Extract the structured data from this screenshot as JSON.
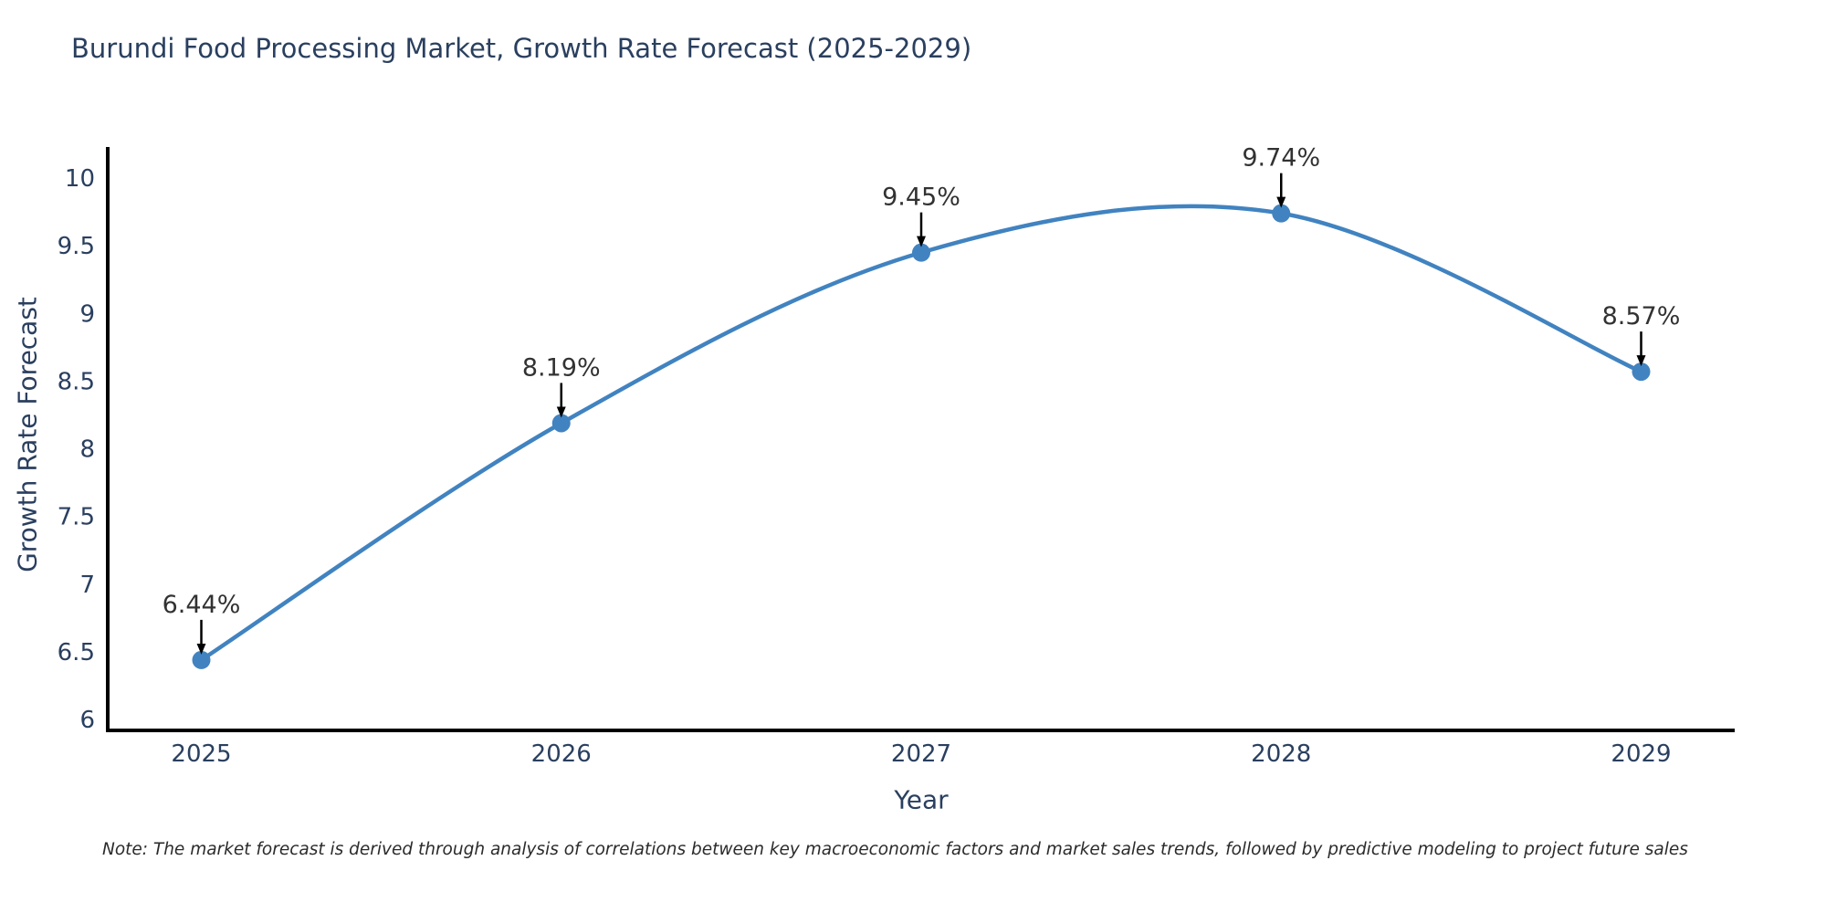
{
  "title": "Burundi Food Processing Market, Growth Rate Forecast (2025-2029)",
  "note": "Note: The market forecast is derived through analysis of correlations between key macroeconomic factors and market sales trends, followed by predictive modeling to project future sales",
  "chart_data": {
    "type": "line",
    "title": "Burundi Food Processing Market, Growth Rate Forecast (2025-2029)",
    "xlabel": "Year",
    "ylabel": "Growth Rate Forecast",
    "x": [
      2025,
      2026,
      2027,
      2028,
      2029
    ],
    "values": [
      6.44,
      8.19,
      9.45,
      9.74,
      8.57
    ],
    "point_labels": [
      "6.44%",
      "8.19%",
      "9.45%",
      "9.74%",
      "8.57%"
    ],
    "xticks": [
      2025,
      2026,
      2027,
      2028,
      2029
    ],
    "yticks": [
      6,
      6.5,
      7,
      7.5,
      8,
      8.5,
      9,
      9.5,
      10
    ],
    "xlim": [
      2024.74,
      2029.26
    ],
    "ylim": [
      5.92,
      10.23
    ],
    "line_shape": "spline",
    "grid": false,
    "legend": false,
    "colors": {
      "line": "#4183c0",
      "marker": "#4183c0",
      "axis": "#000000",
      "axis_text": "#2a3f5f",
      "annotation_text": "#323232",
      "annotation_arrow": "#000000",
      "background": "#ffffff"
    }
  }
}
